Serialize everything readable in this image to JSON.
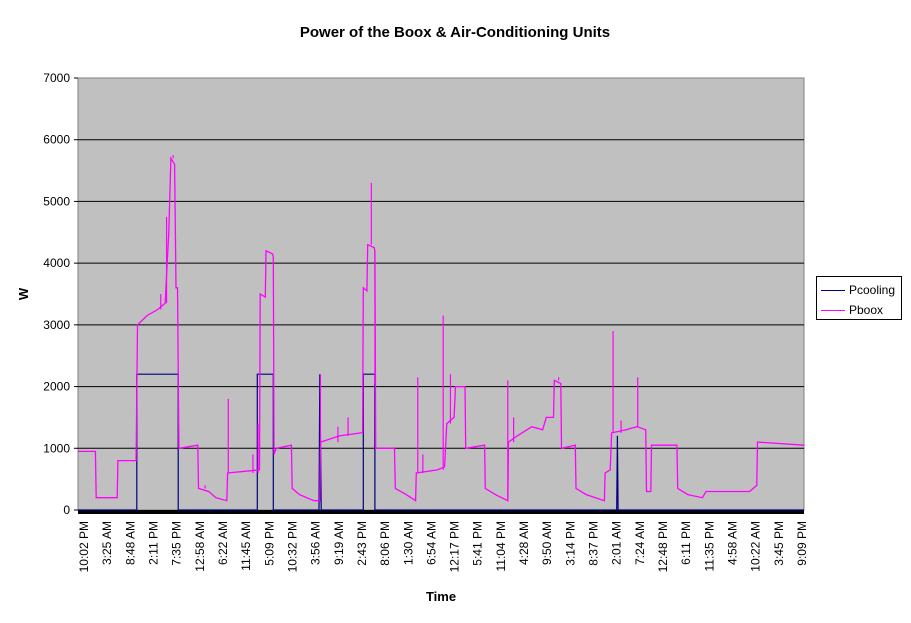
{
  "chart_data": {
    "type": "line",
    "title": "Power of the Boox & Air-Conditioning Units",
    "xlabel": "Time",
    "ylabel": "W",
    "ylim": [
      0,
      7000
    ],
    "yticks": [
      0,
      1000,
      2000,
      3000,
      4000,
      5000,
      6000,
      7000
    ],
    "grid": true,
    "legend_position": "right",
    "background": "#c0c0c0",
    "x_tick_labels": [
      "10:02 PM",
      "3:25 AM",
      "8:48 AM",
      "2:11 PM",
      "7:35 PM",
      "12:58 AM",
      "6:22 AM",
      "11:45 AM",
      "5:09 PM",
      "10:32 PM",
      "3:56 AM",
      "9:19 AM",
      "2:43 PM",
      "8:06 PM",
      "1:30 AM",
      "6:54 AM",
      "12:17 PM",
      "5:41 PM",
      "11:04 PM",
      "4:28 AM",
      "9:50 AM",
      "3:14 PM",
      "8:37 PM",
      "2:01 AM",
      "7:24 AM",
      "12:48 PM",
      "6:11 PM",
      "11:35 PM",
      "4:58 AM",
      "10:22 AM",
      "3:45 PM",
      "9:09 PM"
    ],
    "x_range": [
      0,
      100
    ],
    "series": [
      {
        "name": "Pcooling",
        "color": "#000080",
        "points": [
          [
            0,
            0
          ],
          [
            8.1,
            0
          ],
          [
            8.1,
            2200
          ],
          [
            13.8,
            2200
          ],
          [
            13.8,
            0
          ],
          [
            24.7,
            0
          ],
          [
            24.7,
            2200
          ],
          [
            26.9,
            2200
          ],
          [
            26.9,
            0
          ],
          [
            33.2,
            0
          ],
          [
            33.3,
            2200
          ],
          [
            33.5,
            0
          ],
          [
            39.3,
            0
          ],
          [
            39.3,
            2200
          ],
          [
            40.9,
            2200
          ],
          [
            40.9,
            0
          ],
          [
            74.2,
            0
          ],
          [
            74.3,
            1200
          ],
          [
            74.4,
            0
          ],
          [
            100,
            0
          ]
        ]
      },
      {
        "name": "Pboox",
        "color": "#ff00ff",
        "points": [
          [
            0,
            950
          ],
          [
            2.4,
            950
          ],
          [
            2.5,
            200
          ],
          [
            5.4,
            200
          ],
          [
            5.5,
            800
          ],
          [
            8.0,
            800
          ],
          [
            8.2,
            3000
          ],
          [
            9.5,
            3150
          ],
          [
            11.0,
            3250
          ],
          [
            12.0,
            3350
          ],
          [
            12.5,
            4500
          ],
          [
            12.8,
            5700
          ],
          [
            13.3,
            5600
          ],
          [
            13.5,
            3600
          ],
          [
            13.7,
            3600
          ],
          [
            13.9,
            1000
          ],
          [
            16.5,
            1050
          ],
          [
            16.6,
            350
          ],
          [
            18.0,
            300
          ],
          [
            19.0,
            200
          ],
          [
            20.5,
            150
          ],
          [
            20.6,
            600
          ],
          [
            25.0,
            650
          ],
          [
            25.1,
            3500
          ],
          [
            25.8,
            3450
          ],
          [
            25.9,
            4200
          ],
          [
            26.8,
            4150
          ],
          [
            26.9,
            4100
          ],
          [
            27.0,
            900
          ],
          [
            27.3,
            1000
          ],
          [
            29.4,
            1050
          ],
          [
            29.5,
            350
          ],
          [
            30.5,
            250
          ],
          [
            32.5,
            150
          ],
          [
            33.3,
            150
          ],
          [
            33.4,
            1100
          ],
          [
            36.0,
            1200
          ],
          [
            39.0,
            1250
          ],
          [
            39.2,
            1250
          ],
          [
            39.3,
            3600
          ],
          [
            39.8,
            3550
          ],
          [
            39.9,
            4300
          ],
          [
            40.8,
            4250
          ],
          [
            40.9,
            4200
          ],
          [
            41.0,
            1000
          ],
          [
            43.6,
            1000
          ],
          [
            43.7,
            350
          ],
          [
            45.2,
            250
          ],
          [
            46.5,
            150
          ],
          [
            46.6,
            600
          ],
          [
            49.5,
            650
          ],
          [
            50.5,
            700
          ],
          [
            50.8,
            1400
          ],
          [
            51.8,
            1500
          ],
          [
            52.0,
            2000
          ],
          [
            53.3,
            2000
          ],
          [
            53.4,
            1000
          ],
          [
            56.0,
            1050
          ],
          [
            56.1,
            350
          ],
          [
            57.5,
            250
          ],
          [
            59.2,
            150
          ],
          [
            59.3,
            1100
          ],
          [
            60.5,
            1200
          ],
          [
            62.5,
            1350
          ],
          [
            64.0,
            1300
          ],
          [
            64.5,
            1500
          ],
          [
            65.5,
            1500
          ],
          [
            65.6,
            2100
          ],
          [
            66.5,
            2050
          ],
          [
            66.6,
            1000
          ],
          [
            68.5,
            1050
          ],
          [
            68.6,
            350
          ],
          [
            70.0,
            250
          ],
          [
            72.5,
            150
          ],
          [
            72.6,
            600
          ],
          [
            73.3,
            650
          ],
          [
            73.5,
            1250
          ],
          [
            75.5,
            1300
          ],
          [
            77.0,
            1350
          ],
          [
            78.2,
            1300
          ],
          [
            78.3,
            300
          ],
          [
            78.9,
            300
          ],
          [
            79.0,
            1050
          ],
          [
            82.5,
            1050
          ],
          [
            82.6,
            350
          ],
          [
            84.0,
            250
          ],
          [
            86.0,
            200
          ],
          [
            86.5,
            300
          ],
          [
            89.5,
            300
          ],
          [
            92.5,
            300
          ],
          [
            93.5,
            400
          ],
          [
            93.6,
            1100
          ],
          [
            100,
            1050
          ]
        ],
        "spikes": [
          [
            11.4,
            3500
          ],
          [
            12.2,
            4750
          ],
          [
            13.1,
            5750
          ],
          [
            17.5,
            400
          ],
          [
            20.7,
            1800
          ],
          [
            24.1,
            900
          ],
          [
            24.8,
            1400
          ],
          [
            33.4,
            2200
          ],
          [
            35.8,
            1350
          ],
          [
            37.2,
            1500
          ],
          [
            40.4,
            5300
          ],
          [
            40.9,
            2050
          ],
          [
            46.8,
            2150
          ],
          [
            47.5,
            900
          ],
          [
            50.3,
            3150
          ],
          [
            51.3,
            2200
          ],
          [
            59.2,
            2100
          ],
          [
            60.0,
            1500
          ],
          [
            66.2,
            2150
          ],
          [
            73.7,
            2900
          ],
          [
            74.8,
            1450
          ],
          [
            77.1,
            2150
          ]
        ]
      }
    ]
  }
}
